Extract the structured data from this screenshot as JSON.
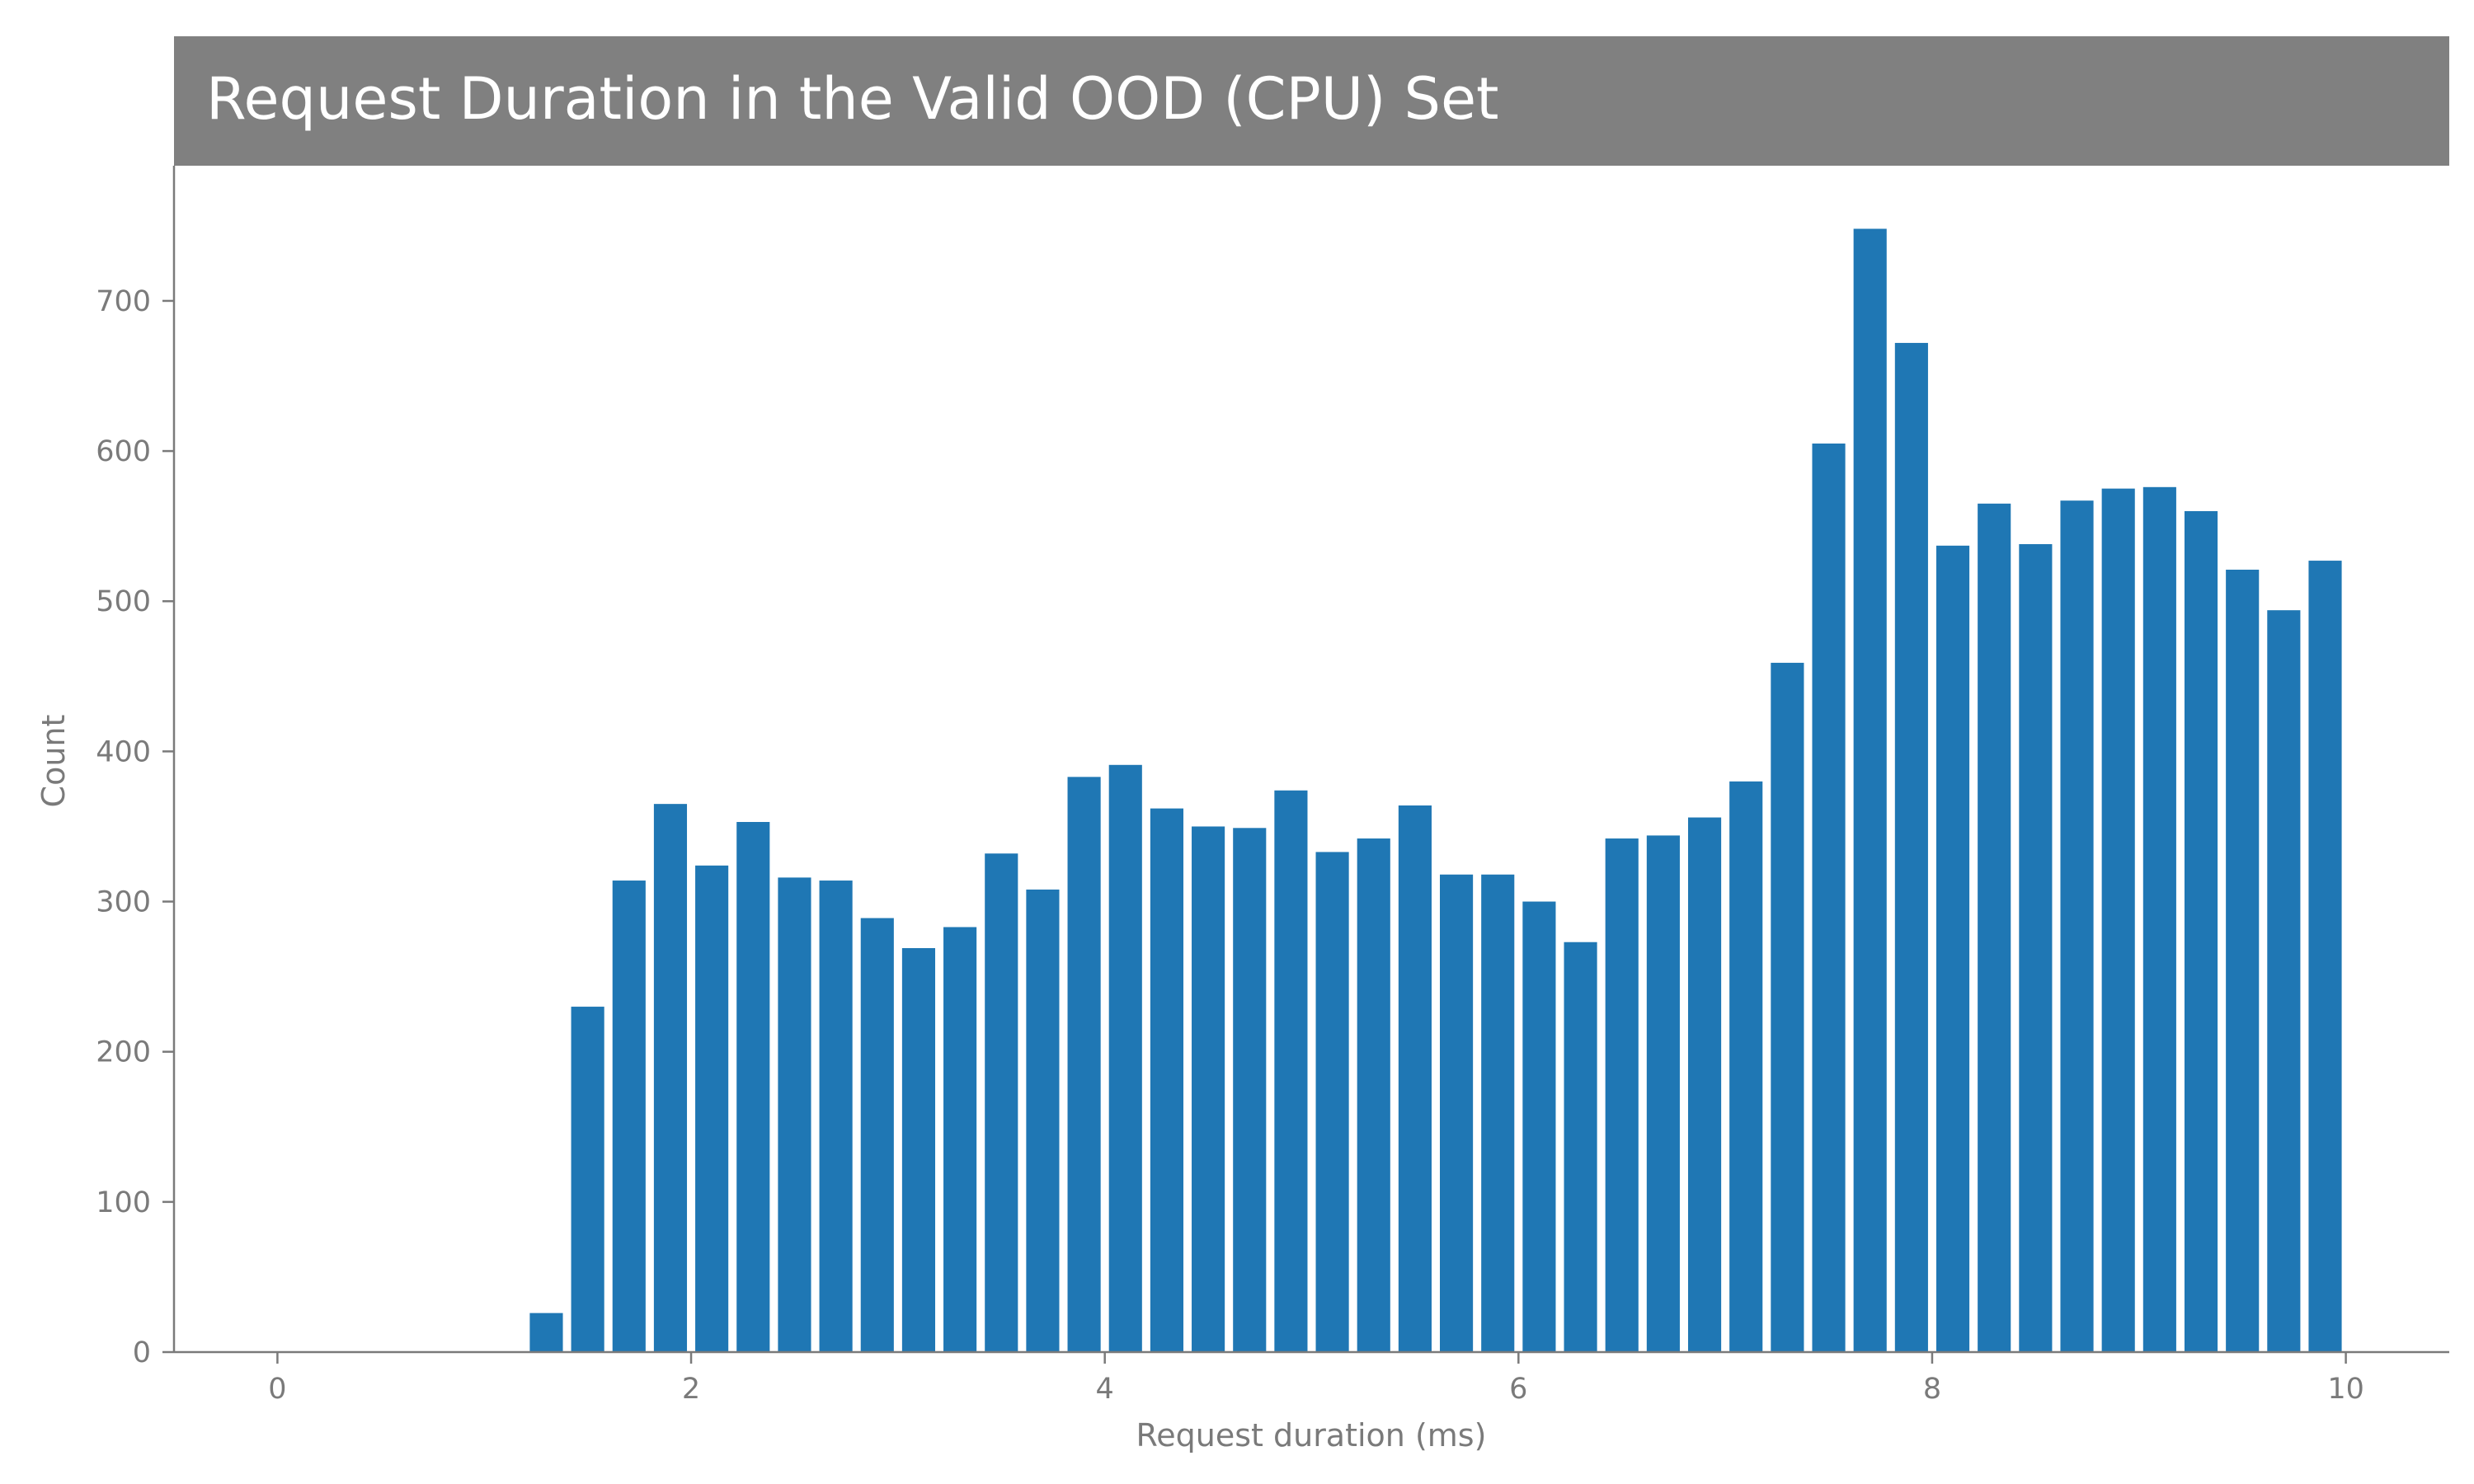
{
  "chart_data": {
    "type": "bar",
    "title": "Request Duration in the Valid OOD (CPU) Set",
    "xlabel": "Request duration (ms)",
    "ylabel": "Count",
    "xlim": [
      -0.5,
      10.5
    ],
    "ylim": [
      0,
      790
    ],
    "x_ticks": [
      0,
      2,
      4,
      6,
      8,
      10
    ],
    "y_ticks": [
      0,
      100,
      200,
      300,
      400,
      500,
      600,
      700
    ],
    "bar_width": 0.16,
    "bar_color": "#1f77b4",
    "title_bar_color": "#808080",
    "grid": false,
    "x": [
      1.3,
      1.5,
      1.7,
      1.9,
      2.1,
      2.3,
      2.5,
      2.7,
      2.9,
      3.1,
      3.3,
      3.5,
      3.7,
      3.9,
      4.1,
      4.3,
      4.5,
      4.7,
      4.9,
      5.1,
      5.3,
      5.5,
      5.7,
      5.9,
      6.1,
      6.3,
      6.5,
      6.7,
      6.9,
      7.1,
      7.3,
      7.5,
      7.7,
      7.9,
      8.1,
      8.3,
      8.5,
      8.7,
      8.9,
      9.1,
      9.3,
      9.5,
      9.7,
      9.9
    ],
    "values": [
      26,
      230,
      314,
      365,
      324,
      353,
      316,
      314,
      289,
      269,
      283,
      332,
      308,
      383,
      391,
      362,
      350,
      349,
      374,
      333,
      342,
      364,
      318,
      318,
      300,
      273,
      342,
      344,
      356,
      380,
      459,
      605,
      748,
      672,
      537,
      565,
      538,
      567,
      575,
      576,
      560,
      521,
      494,
      527
    ]
  }
}
